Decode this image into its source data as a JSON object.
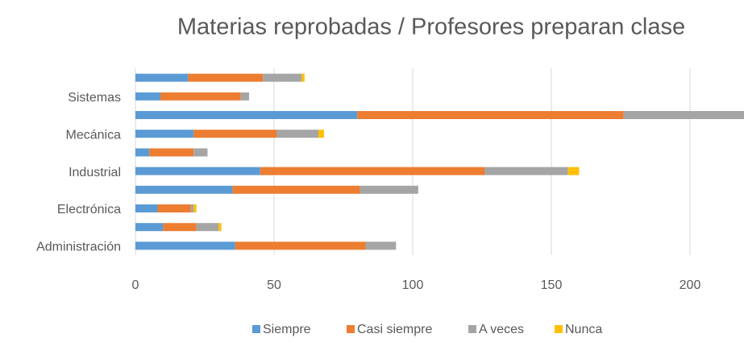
{
  "chart_data": {
    "type": "stacked_barh",
    "title": "Materias reprobadas / Profesores preparan clase",
    "categories": [
      "Administración",
      null,
      "Electrónica",
      null,
      "Industrial",
      null,
      "Mecánica",
      null,
      "Sistemas",
      null
    ],
    "series": [
      {
        "name": "Siempre",
        "color": "#5b9bd5",
        "values": [
          36,
          10,
          8,
          35,
          45,
          5,
          21,
          80,
          9,
          19
        ]
      },
      {
        "name": "Casi siempre",
        "color": "#ed7d31",
        "values": [
          47,
          12,
          12,
          46,
          81,
          16,
          30,
          96,
          29,
          27
        ]
      },
      {
        "name": "A veces",
        "color": "#a5a5a5",
        "values": [
          11,
          8,
          1,
          21,
          30,
          5,
          15,
          50,
          3,
          14
        ]
      },
      {
        "name": "Nunca",
        "color": "#ffc000",
        "values": [
          0,
          1,
          1,
          0,
          4,
          0,
          2,
          0,
          0,
          1
        ]
      }
    ],
    "xlim": [
      0,
      220
    ],
    "xticks": [
      0,
      50,
      100,
      150,
      200
    ],
    "grid": true,
    "legend": "bottom"
  }
}
